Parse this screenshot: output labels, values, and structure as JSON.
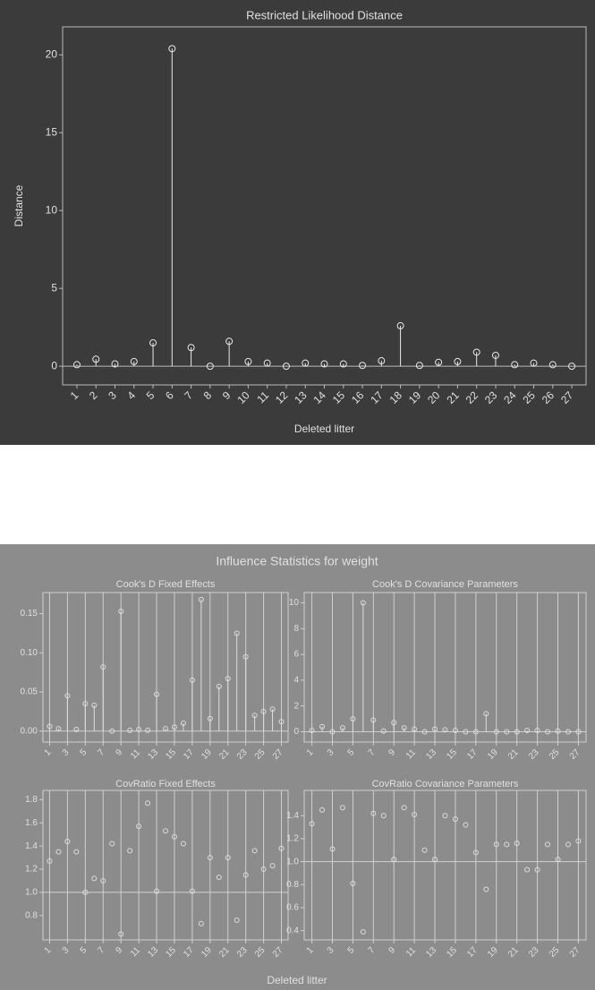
{
  "chart_data": [
    {
      "type": "stem",
      "title": "Restricted Likelihood Distance",
      "x_label": "Deleted litter",
      "y_label": "Distance",
      "categories": [
        "1",
        "2",
        "3",
        "4",
        "5",
        "6",
        "7",
        "8",
        "9",
        "10",
        "11",
        "12",
        "13",
        "14",
        "15",
        "16",
        "17",
        "18",
        "19",
        "20",
        "21",
        "22",
        "23",
        "24",
        "25",
        "26",
        "27"
      ],
      "values": [
        0.1,
        0.45,
        0.15,
        0.3,
        1.5,
        20.4,
        1.2,
        0.0,
        1.6,
        0.3,
        0.2,
        0.0,
        0.2,
        0.15,
        0.15,
        0.05,
        0.35,
        2.6,
        0.05,
        0.25,
        0.3,
        0.9,
        0.7,
        0.1,
        0.2,
        0.1,
        0.0
      ],
      "ylim": [
        -1.2,
        21.8
      ],
      "yticks": [
        0,
        5,
        10,
        15,
        20
      ],
      "refline": 0,
      "color": "#e8e8e8"
    },
    {
      "type": "stem",
      "title": "Cook's D Fixed Effects",
      "categories": [
        "1",
        null,
        "3",
        null,
        "5",
        null,
        "7",
        null,
        "9",
        null,
        "11",
        null,
        "13",
        null,
        "15",
        null,
        "17",
        null,
        "19",
        null,
        "21",
        null,
        "23",
        null,
        "25",
        null,
        "27"
      ],
      "values": [
        0.006,
        0.003,
        0.045,
        0.002,
        0.035,
        0.033,
        0.082,
        0.0,
        0.153,
        0.001,
        0.002,
        0.001,
        0.047,
        0.003,
        0.005,
        0.01,
        0.065,
        0.168,
        0.016,
        0.057,
        0.067,
        0.125,
        0.095,
        0.02,
        0.025,
        0.028,
        0.012
      ],
      "ylim": [
        -0.014,
        0.177
      ],
      "yticks": [
        {
          "value": 0,
          "label": "0.00"
        },
        0.05,
        {
          "value": 0.1,
          "label": "0.10"
        },
        0.15
      ],
      "refline": 0,
      "color": "#dddddd"
    },
    {
      "type": "stem",
      "title": "Cook's D Covariance Parameters",
      "categories": [
        "1",
        null,
        "3",
        null,
        "5",
        null,
        "7",
        null,
        "9",
        null,
        "11",
        null,
        "13",
        null,
        "15",
        null,
        "17",
        null,
        "19",
        null,
        "21",
        null,
        "23",
        null,
        "25",
        null,
        "27"
      ],
      "values": [
        0.1,
        0.4,
        0.0,
        0.3,
        1.0,
        10.0,
        0.9,
        0.05,
        0.7,
        0.3,
        0.2,
        0.0,
        0.2,
        0.15,
        0.1,
        0.0,
        0.0,
        1.4,
        0.0,
        0.0,
        0.0,
        0.1,
        0.1,
        0.0,
        0.05,
        0.0,
        0.0
      ],
      "ylim": [
        -0.8,
        10.8
      ],
      "yticks": [
        0,
        2,
        4,
        6,
        8,
        10
      ],
      "refline": 0,
      "color": "#dddddd"
    },
    {
      "type": "scatter",
      "title": "CovRatio Fixed Effects",
      "categories": [
        "1",
        null,
        "3",
        null,
        "5",
        null,
        "7",
        null,
        "9",
        null,
        "11",
        null,
        "13",
        null,
        "15",
        null,
        "17",
        null,
        "19",
        null,
        "21",
        null,
        "23",
        null,
        "25",
        null,
        "27"
      ],
      "values": [
        1.27,
        1.35,
        1.44,
        1.35,
        1.0,
        1.12,
        1.1,
        1.42,
        0.64,
        1.36,
        1.57,
        1.77,
        1.01,
        1.53,
        1.48,
        1.42,
        1.01,
        0.73,
        1.3,
        1.13,
        1.3,
        0.76,
        1.15,
        1.36,
        1.2,
        1.23,
        1.38
      ],
      "ylim": [
        0.59,
        1.88
      ],
      "yticks": [
        0.8,
        {
          "value": 1,
          "label": "1.0"
        },
        1.2,
        1.4,
        1.6,
        1.8
      ],
      "refline": 1,
      "color": "#dddddd"
    },
    {
      "type": "scatter",
      "title": "CovRatio Covariance Parameters",
      "categories": [
        "1",
        null,
        "3",
        null,
        "5",
        null,
        "7",
        null,
        "9",
        null,
        "11",
        null,
        "13",
        null,
        "15",
        null,
        "17",
        null,
        "19",
        null,
        "21",
        null,
        "23",
        null,
        "25",
        null,
        "27"
      ],
      "values": [
        1.33,
        1.45,
        1.11,
        1.47,
        0.81,
        0.39,
        1.42,
        1.4,
        1.02,
        1.47,
        1.41,
        1.1,
        1.02,
        1.4,
        1.37,
        1.32,
        1.08,
        0.76,
        1.15,
        1.15,
        1.16,
        0.93,
        0.93,
        1.15,
        1.02,
        1.15,
        1.18
      ],
      "ylim": [
        0.32,
        1.62
      ],
      "yticks": [
        0.4,
        0.6,
        0.8,
        {
          "value": 1,
          "label": "1.0"
        },
        1.2,
        1.4
      ],
      "refline": 1,
      "color": "#dddddd"
    }
  ],
  "panel": {
    "title": "Influence Statistics for weight",
    "x_label": "Deleted litter"
  }
}
